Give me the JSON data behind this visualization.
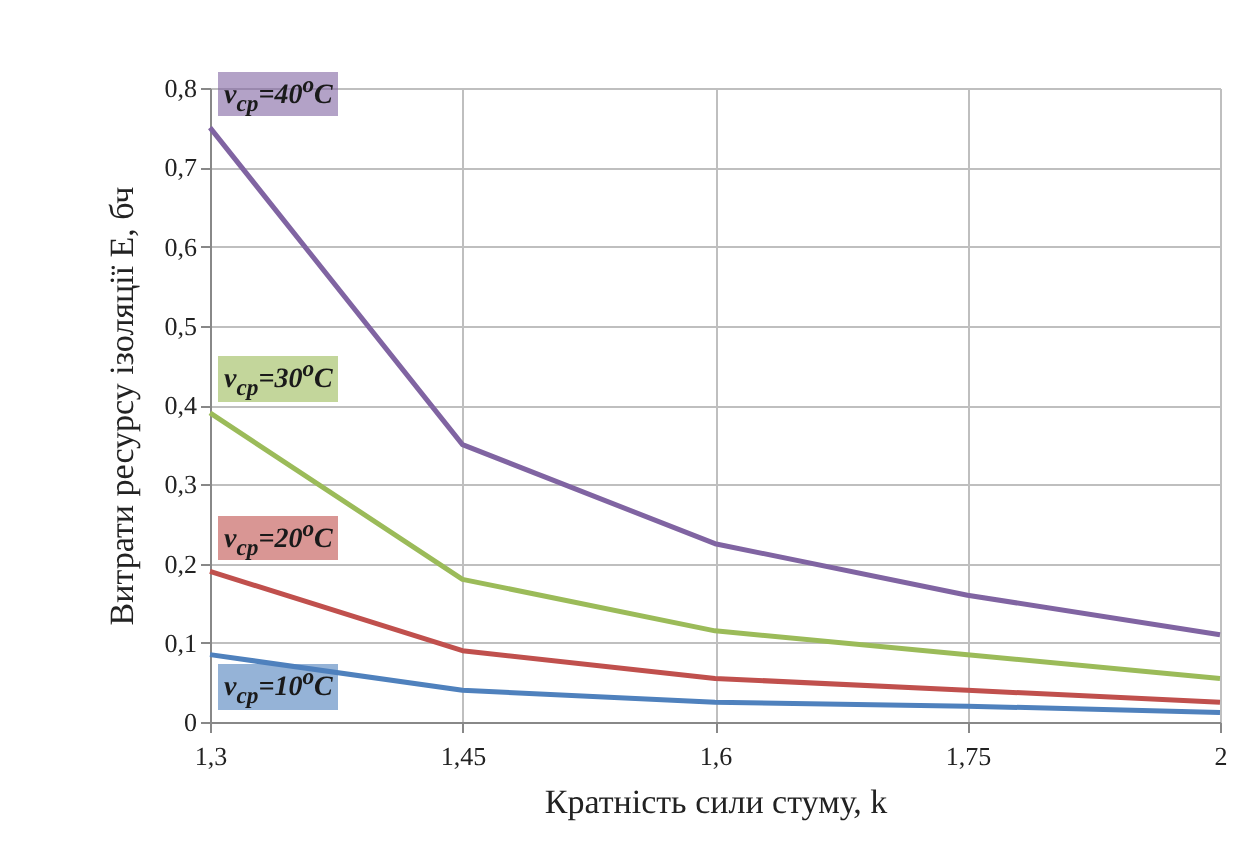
{
  "chart_data": {
    "type": "line",
    "xlabel": "Кратність сили стуму, k",
    "ylabel": "Витрати ресурсу ізоляції E, бч",
    "categories": [
      "1,3",
      "1,45",
      "1,6",
      "1,75",
      "2"
    ],
    "series": [
      {
        "name": "v$_{ср}$=40$^{o}$C",
        "color": "#8064a2",
        "values": [
          0.75,
          0.35,
          0.225,
          0.16,
          0.11
        ]
      },
      {
        "name": "v$_{ср}$=30$^{o}$C",
        "color": "#9bbb59",
        "values": [
          0.39,
          0.18,
          0.115,
          0.085,
          0.055
        ]
      },
      {
        "name": "v$_{ср}$=20$^{o}$C",
        "color": "#c0504d",
        "values": [
          0.19,
          0.09,
          0.055,
          0.04,
          0.025
        ]
      },
      {
        "name": "v$_{ср}$=10$^{o}$C",
        "color": "#4f81bd",
        "values": [
          0.085,
          0.04,
          0.025,
          0.02,
          0.012
        ]
      }
    ],
    "ylim": [
      0,
      0.8
    ],
    "yticks": [
      0,
      {
        "value": 0.1,
        "label": "0,1"
      },
      {
        "value": 0.2,
        "label": "0,2"
      },
      {
        "value": 0.3,
        "label": "0,3"
      },
      {
        "value": 0.4,
        "label": "0,4"
      },
      {
        "value": 0.5,
        "label": "0,5"
      },
      {
        "value": 0.6,
        "label": "0,6"
      },
      {
        "value": 0.7,
        "label": "0,7"
      },
      {
        "value": 0.8,
        "label": "0,8"
      }
    ],
    "grid": true,
    "marker": "none",
    "line_style": "solid"
  }
}
